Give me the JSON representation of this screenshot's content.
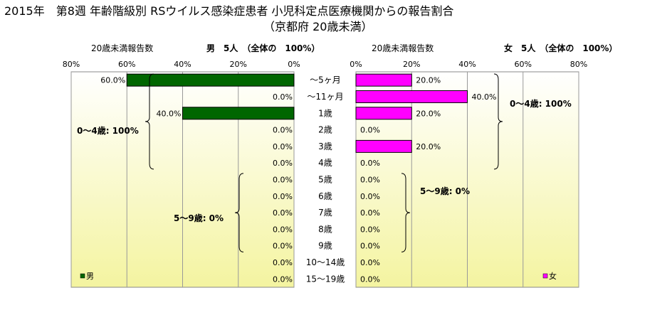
{
  "title": {
    "line1": "2015年　第8週 年齢階級別 RSウイルス感染症患者 小児科定点医療機関からの報告割合",
    "line2": "（京都府 20歳未満）"
  },
  "colors": {
    "male": "#006600",
    "female": "#ff00ff",
    "bar_outline": "#000000",
    "plot_bg_light": "#ffffff",
    "plot_bg_yellow": "#f4f4a0",
    "grid": "#999999"
  },
  "chart_data": {
    "type": "bar",
    "orientation": "horizontal-pyramid",
    "categories": [
      "～5ヶ月",
      "～11ヶ月",
      "1歳",
      "2歳",
      "3歳",
      "4歳",
      "5歳",
      "6歳",
      "7歳",
      "8歳",
      "9歳",
      "10～14歳",
      "15～19歳"
    ],
    "axis_tick_labels": [
      "0%",
      "20%",
      "40%",
      "60%",
      "80%"
    ],
    "xlim": [
      0,
      80
    ],
    "grid": true,
    "series": [
      {
        "name": "男",
        "side": "left",
        "values": [
          60,
          0,
          40,
          0,
          0,
          0,
          0,
          0,
          0,
          0,
          0,
          0,
          0
        ],
        "value_labels": [
          "60.0%",
          "0.0%",
          "40.0%",
          "0.0%",
          "0.0%",
          "0.0%",
          "0.0%",
          "0.0%",
          "0.0%",
          "0.0%",
          "0.0%",
          "0.0%",
          "0.0%"
        ],
        "header_left": "20歳未満報告数",
        "header_right": "男　5人　（全体の　100%）",
        "legend": "男",
        "groups": [
          {
            "label": "0～4歳: 100%",
            "from": 0,
            "to": 5
          },
          {
            "label": "5～9歳: 0%",
            "from": 6,
            "to": 10
          }
        ]
      },
      {
        "name": "女",
        "side": "right",
        "values": [
          20,
          40,
          20,
          0,
          20,
          0,
          0,
          0,
          0,
          0,
          0,
          0,
          0
        ],
        "value_labels": [
          "20.0%",
          "40.0%",
          "20.0%",
          "0.0%",
          "20.0%",
          "0.0%",
          "0.0%",
          "0.0%",
          "0.0%",
          "0.0%",
          "0.0%",
          "0.0%",
          "0.0%"
        ],
        "header_left": "20歳未満報告数",
        "header_right": "女　5人　（全体の　100%）",
        "legend": "女",
        "groups": [
          {
            "label": "0～4歳: 100%",
            "from": 0,
            "to": 5
          },
          {
            "label": "5～9歳: 0%",
            "from": 6,
            "to": 10
          }
        ]
      }
    ]
  }
}
